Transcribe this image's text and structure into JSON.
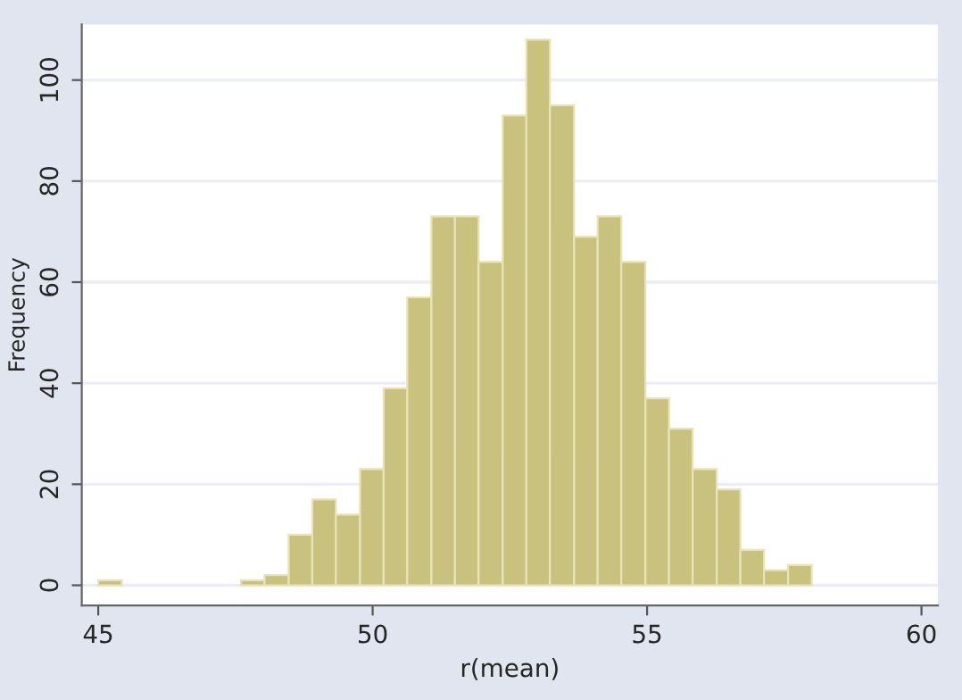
{
  "chart_data": {
    "type": "histogram",
    "xlabel": "r(mean)",
    "ylabel": "Frequency",
    "bins": [
      45,
      45.43,
      47.6,
      48.03,
      48.47,
      48.9,
      49.33,
      49.77,
      50.2,
      50.63,
      51.07,
      51.5,
      51.93,
      52.37,
      52.8,
      53.23,
      53.67,
      54.1,
      54.53,
      54.97,
      55.4,
      55.83,
      56.27,
      56.7,
      57.13,
      57.57,
      58
    ],
    "values": [
      1,
      0,
      1,
      2,
      10,
      17,
      14,
      23,
      39,
      57,
      73,
      73,
      64,
      93,
      108,
      95,
      69,
      73,
      64,
      37,
      31,
      23,
      19,
      7,
      3,
      4
    ],
    "color": "#c9c27e",
    "xlim": [
      44.7,
      60.3
    ],
    "xticks": [
      45,
      50,
      55,
      60
    ],
    "ylim": [
      -4,
      111
    ],
    "yticks": [
      0,
      20,
      40,
      60,
      80,
      100
    ],
    "grid": "y"
  }
}
